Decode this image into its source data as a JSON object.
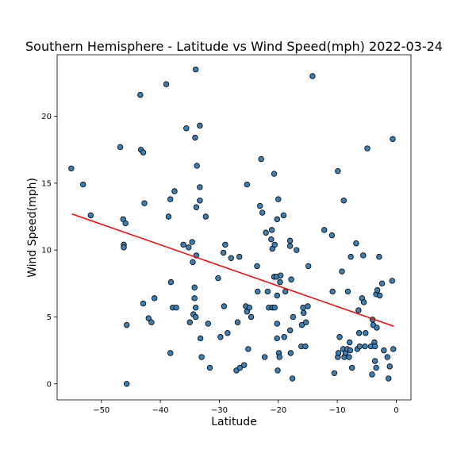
{
  "chart_data": {
    "type": "scatter",
    "title": "Southern Hemisphere - Latitude vs Wind Speed(mph) 2022-03-24",
    "xlabel": "Latitude",
    "ylabel": "Wind Speed(mph)",
    "xlim": [
      -57.5,
      2.5
    ],
    "ylim": [
      -1.2,
      24.6
    ],
    "xticks": [
      -50,
      -40,
      -30,
      -20,
      -10,
      0
    ],
    "yticks": [
      0,
      5,
      10,
      15,
      20
    ],
    "grid": false,
    "legend": "none",
    "colors": {
      "points": "#3b7fb4",
      "edge": "#000000",
      "regression": "#ff0000"
    },
    "regression": {
      "x": [
        -55.0,
        -0.4
      ],
      "y": [
        12.7,
        4.3
      ]
    },
    "points": [
      [
        -55.1,
        16.1
      ],
      [
        -53.1,
        14.9
      ],
      [
        -51.8,
        12.6
      ],
      [
        -46.8,
        17.7
      ],
      [
        -46.3,
        12.3
      ],
      [
        -46.2,
        10.4
      ],
      [
        -46.2,
        10.2
      ],
      [
        -45.9,
        12.0
      ],
      [
        -45.7,
        4.4
      ],
      [
        -45.7,
        0.0
      ],
      [
        -43.4,
        21.6
      ],
      [
        -43.3,
        17.5
      ],
      [
        -42.9,
        17.3
      ],
      [
        -42.7,
        13.5
      ],
      [
        -42.9,
        6.0
      ],
      [
        -42.0,
        4.9
      ],
      [
        -41.5,
        4.6
      ],
      [
        -41.0,
        6.4
      ],
      [
        -39.0,
        22.4
      ],
      [
        -38.6,
        12.5
      ],
      [
        -38.3,
        13.8
      ],
      [
        -38.2,
        7.6
      ],
      [
        -38.3,
        2.3
      ],
      [
        -37.9,
        5.7
      ],
      [
        -37.6,
        14.4
      ],
      [
        -37.3,
        5.7
      ],
      [
        -36.1,
        10.4
      ],
      [
        -35.6,
        19.1
      ],
      [
        -35.2,
        10.2
      ],
      [
        -35.0,
        4.6
      ],
      [
        -34.6,
        10.6
      ],
      [
        -34.5,
        9.1
      ],
      [
        -34.4,
        5.2
      ],
      [
        -34.0,
        23.5
      ],
      [
        -34.1,
        18.4
      ],
      [
        -34.2,
        7.2
      ],
      [
        -34.2,
        6.4
      ],
      [
        -34.0,
        5.7
      ],
      [
        -34.0,
        5.0
      ],
      [
        -33.8,
        16.3
      ],
      [
        -33.9,
        13.2
      ],
      [
        -33.9,
        9.6
      ],
      [
        -33.3,
        19.3
      ],
      [
        -33.3,
        14.7
      ],
      [
        -33.3,
        13.7
      ],
      [
        -33.2,
        3.4
      ],
      [
        -33.0,
        2.0
      ],
      [
        -32.3,
        12.5
      ],
      [
        -31.9,
        4.5
      ],
      [
        -31.6,
        1.2
      ],
      [
        -30.2,
        7.9
      ],
      [
        -29.8,
        3.5
      ],
      [
        -29.3,
        9.8
      ],
      [
        -29.2,
        5.8
      ],
      [
        -29.0,
        10.4
      ],
      [
        -28.6,
        3.8
      ],
      [
        -28.0,
        9.4
      ],
      [
        -27.1,
        1.0
      ],
      [
        -26.9,
        4.6
      ],
      [
        -26.6,
        9.5
      ],
      [
        -26.5,
        1.2
      ],
      [
        -25.8,
        1.4
      ],
      [
        -25.5,
        5.8
      ],
      [
        -25.3,
        14.9
      ],
      [
        -25.3,
        5.4
      ],
      [
        -25.1,
        2.6
      ],
      [
        -24.9,
        5.7
      ],
      [
        -24.6,
        5.0
      ],
      [
        -23.6,
        8.8
      ],
      [
        -23.5,
        6.9
      ],
      [
        -23.1,
        13.3
      ],
      [
        -22.9,
        16.8
      ],
      [
        -22.7,
        12.8
      ],
      [
        -22.3,
        2.0
      ],
      [
        -22.1,
        11.3
      ],
      [
        -21.8,
        6.9
      ],
      [
        -21.6,
        5.7
      ],
      [
        -21.2,
        10.8
      ],
      [
        -21.1,
        11.5
      ],
      [
        -21.0,
        10.1
      ],
      [
        -21.0,
        5.7
      ],
      [
        -20.7,
        15.7
      ],
      [
        -20.7,
        8.0
      ],
      [
        -20.6,
        10.4
      ],
      [
        -20.6,
        5.7
      ],
      [
        -20.3,
        8.0
      ],
      [
        -20.2,
        6.6
      ],
      [
        -20.2,
        12.3
      ],
      [
        -20.2,
        4.5
      ],
      [
        -20.2,
        3.4
      ],
      [
        -20.1,
        1.0
      ],
      [
        -20.0,
        13.8
      ],
      [
        -19.9,
        2.3
      ],
      [
        -19.8,
        2.0
      ],
      [
        -19.7,
        7.6
      ],
      [
        -19.6,
        8.1
      ],
      [
        -19.1,
        12.6
      ],
      [
        -19.0,
        3.5
      ],
      [
        -18.8,
        6.9
      ],
      [
        -18.0,
        10.7
      ],
      [
        -18.0,
        10.3
      ],
      [
        -18.0,
        4.0
      ],
      [
        -17.9,
        2.3
      ],
      [
        -17.8,
        7.8
      ],
      [
        -17.6,
        0.4
      ],
      [
        -17.5,
        5.0
      ],
      [
        -16.9,
        10.0
      ],
      [
        -16.1,
        2.8
      ],
      [
        -16.0,
        4.4
      ],
      [
        -15.8,
        5.7
      ],
      [
        -15.7,
        5.3
      ],
      [
        -15.4,
        2.8
      ],
      [
        -15.3,
        4.6
      ],
      [
        -15.0,
        5.8
      ],
      [
        -14.9,
        8.8
      ],
      [
        -14.2,
        23.0
      ],
      [
        -12.2,
        11.5
      ],
      [
        -10.9,
        11.1
      ],
      [
        -10.8,
        6.9
      ],
      [
        -10.5,
        0.8
      ],
      [
        -9.9,
        15.9
      ],
      [
        -9.9,
        2.0
      ],
      [
        -9.8,
        2.3
      ],
      [
        -9.6,
        3.5
      ],
      [
        -9.2,
        8.4
      ],
      [
        -9.0,
        2.6
      ],
      [
        -8.9,
        13.7
      ],
      [
        -8.8,
        2.0
      ],
      [
        -8.6,
        2.3
      ],
      [
        -8.3,
        2.6
      ],
      [
        -8.2,
        6.9
      ],
      [
        -8.0,
        2.0
      ],
      [
        -7.9,
        3.1
      ],
      [
        -7.8,
        2.5
      ],
      [
        -7.7,
        9.5
      ],
      [
        -7.5,
        1.2
      ],
      [
        -6.8,
        10.5
      ],
      [
        -6.6,
        2.6
      ],
      [
        -6.4,
        5.5
      ],
      [
        -6.3,
        3.8
      ],
      [
        -6.2,
        2.8
      ],
      [
        -5.8,
        6.4
      ],
      [
        -5.6,
        9.6
      ],
      [
        -5.5,
        6.1
      ],
      [
        -5.3,
        2.8
      ],
      [
        -5.2,
        3.8
      ],
      [
        -4.9,
        17.6
      ],
      [
        -4.3,
        2.8
      ],
      [
        -4.1,
        0.7
      ],
      [
        -4.0,
        4.8
      ],
      [
        -3.9,
        4.4
      ],
      [
        -3.7,
        3.1
      ],
      [
        -3.6,
        2.8
      ],
      [
        -3.6,
        1.7
      ],
      [
        -3.4,
        6.7
      ],
      [
        -3.4,
        1.2
      ],
      [
        -3.3,
        4.2
      ],
      [
        -3.2,
        7.0
      ],
      [
        -2.9,
        9.5
      ],
      [
        -2.8,
        6.6
      ],
      [
        -2.4,
        7.5
      ],
      [
        -2.1,
        2.5
      ],
      [
        -1.5,
        2.0
      ],
      [
        -1.3,
        0.4
      ],
      [
        -1.1,
        1.3
      ],
      [
        -0.7,
        7.7
      ],
      [
        -0.6,
        18.3
      ],
      [
        -0.5,
        2.6
      ]
    ]
  }
}
